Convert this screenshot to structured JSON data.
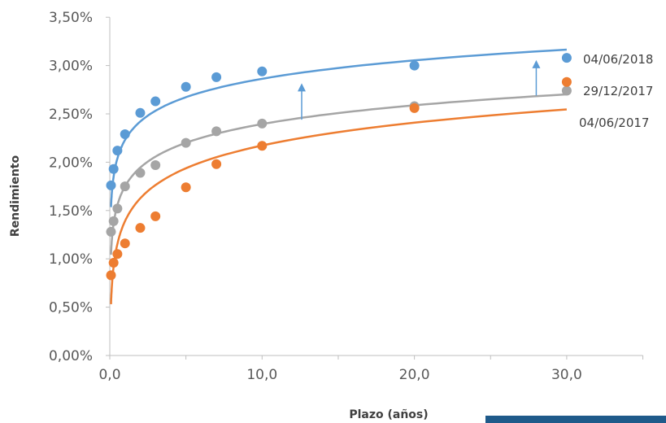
{
  "chart_data": {
    "type": "scatter",
    "xlabel": "Plazo (años)",
    "ylabel": "Rendimiento",
    "xlim": [
      0,
      35
    ],
    "ylim": [
      0,
      0.035
    ],
    "x_ticks": [
      0,
      10,
      20,
      30
    ],
    "x_tick_labels": [
      "0,0",
      "10,0",
      "20,0",
      "30,0"
    ],
    "y_ticks": [
      0,
      0.005,
      0.01,
      0.015,
      0.02,
      0.025,
      0.03,
      0.035
    ],
    "y_tick_labels": [
      "0,00%",
      "0,50%",
      "1,00%",
      "1,50%",
      "2,00%",
      "2,50%",
      "3,00%",
      "3,50%"
    ],
    "grid": false,
    "legend_position": "right",
    "series": [
      {
        "name": "04/06/2018",
        "color": "#5b9bd5",
        "points": [
          [
            0.08,
            0.0176
          ],
          [
            0.25,
            0.0193
          ],
          [
            0.5,
            0.0212
          ],
          [
            1,
            0.0229
          ],
          [
            2,
            0.0251
          ],
          [
            3,
            0.0263
          ],
          [
            5,
            0.0278
          ],
          [
            7,
            0.0288
          ],
          [
            10,
            0.0294
          ],
          [
            20,
            0.03
          ],
          [
            30,
            0.0308
          ]
        ],
        "trend": {
          "type": "log",
          "a": 0.0223,
          "b": 0.00275,
          "x_start": 0.08,
          "x_end": 30
        }
      },
      {
        "name": "29/12/2017",
        "color": "#a5a5a5",
        "points": [
          [
            0.08,
            0.0128
          ],
          [
            0.25,
            0.0139
          ],
          [
            0.5,
            0.0152
          ],
          [
            1,
            0.0175
          ],
          [
            2,
            0.0189
          ],
          [
            3,
            0.0197
          ],
          [
            5,
            0.022
          ],
          [
            7,
            0.0232
          ],
          [
            10,
            0.024
          ],
          [
            20,
            0.0258
          ],
          [
            30,
            0.0274
          ]
        ],
        "trend": {
          "type": "log",
          "a": 0.0175,
          "b": 0.0028,
          "x_start": 0.08,
          "x_end": 30
        }
      },
      {
        "name": "04/06/2017",
        "color": "#ed7d31",
        "points": [
          [
            0.08,
            0.0083
          ],
          [
            0.25,
            0.0096
          ],
          [
            0.5,
            0.0105
          ],
          [
            1,
            0.0116
          ],
          [
            2,
            0.0132
          ],
          [
            3,
            0.0144
          ],
          [
            5,
            0.0174
          ],
          [
            7,
            0.0198
          ],
          [
            10,
            0.0217
          ],
          [
            20,
            0.0256
          ],
          [
            30,
            0.0283
          ]
        ],
        "trend": {
          "type": "log",
          "a": 0.0139,
          "b": 0.0034,
          "x_start": 0.08,
          "x_end": 30
        }
      }
    ],
    "annotations": [
      {
        "type": "arrow",
        "x": 12.6,
        "y_from": 0.0244,
        "y_to": 0.028,
        "color": "#5b9bd5"
      },
      {
        "type": "arrow",
        "x": 28.0,
        "y_from": 0.0269,
        "y_to": 0.0304,
        "color": "#5b9bd5"
      }
    ]
  },
  "colors": {
    "axis": "#bfbfbf",
    "footer_bar": "#1f5a8a"
  }
}
